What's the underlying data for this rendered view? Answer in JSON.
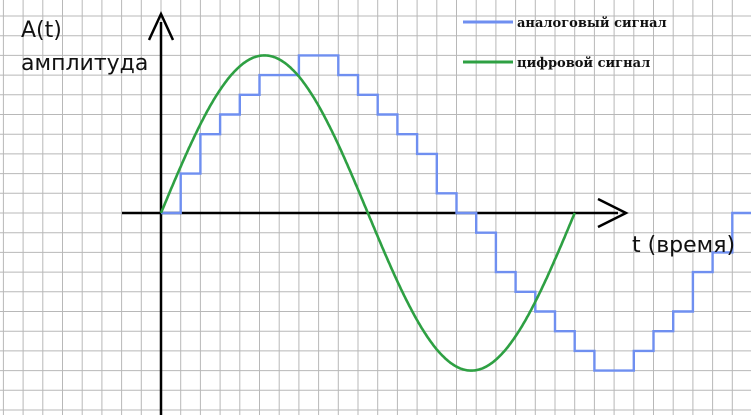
{
  "labels": {
    "y_axis_symbol": "A(t)",
    "y_axis_name": "амплитуда",
    "x_axis_name": "t (время)"
  },
  "legend": [
    {
      "label": "аналоговый сигнал",
      "color": "#6f8ff0"
    },
    {
      "label": "цифровой сигнал",
      "color": "#2ea043"
    }
  ],
  "colors": {
    "grid": "#b8b8b8",
    "axis": "#000000",
    "step_signal": "#6f8ff0",
    "sine_signal": "#2ea043"
  },
  "chart_data": {
    "type": "line",
    "grid": true,
    "sine": {
      "name": "цифровой сигнал",
      "period_cells": 21,
      "amplitude_cells": 8
    },
    "step": {
      "name": "аналоговый сигнал",
      "sample_interval_cells": 1,
      "levels": [
        0,
        2,
        4,
        5,
        6,
        7,
        7,
        8,
        8,
        7,
        6,
        5,
        4,
        3,
        1,
        0,
        -1,
        -3,
        -4,
        -5,
        -6,
        -7,
        -8,
        -8,
        -7,
        -6,
        -5,
        -3,
        -2,
        0,
        0
      ]
    }
  }
}
